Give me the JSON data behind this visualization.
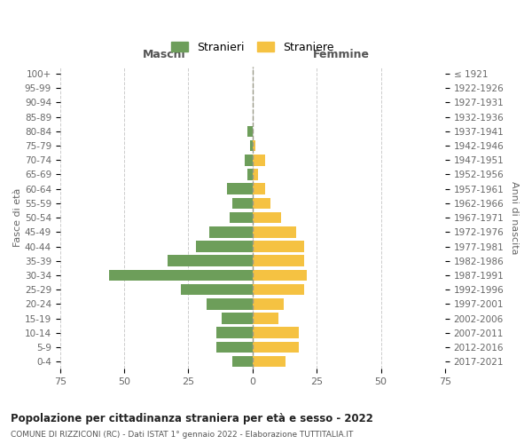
{
  "age_groups": [
    "0-4",
    "5-9",
    "10-14",
    "15-19",
    "20-24",
    "25-29",
    "30-34",
    "35-39",
    "40-44",
    "45-49",
    "50-54",
    "55-59",
    "60-64",
    "65-69",
    "70-74",
    "75-79",
    "80-84",
    "85-89",
    "90-94",
    "95-99",
    "100+"
  ],
  "birth_years": [
    "2017-2021",
    "2012-2016",
    "2007-2011",
    "2002-2006",
    "1997-2001",
    "1992-1996",
    "1987-1991",
    "1982-1986",
    "1977-1981",
    "1972-1976",
    "1967-1971",
    "1962-1966",
    "1957-1961",
    "1952-1956",
    "1947-1951",
    "1942-1946",
    "1937-1941",
    "1932-1936",
    "1927-1931",
    "1922-1926",
    "≤ 1921"
  ],
  "males": [
    8,
    14,
    14,
    12,
    18,
    28,
    56,
    33,
    22,
    17,
    9,
    8,
    10,
    2,
    3,
    1,
    2,
    0,
    0,
    0,
    0
  ],
  "females": [
    13,
    18,
    18,
    10,
    12,
    20,
    21,
    20,
    20,
    17,
    11,
    7,
    5,
    2,
    5,
    1,
    0,
    0,
    0,
    0,
    0
  ],
  "male_color": "#6d9e5a",
  "female_color": "#f5c242",
  "background_color": "#ffffff",
  "grid_color": "#cccccc",
  "title": "Popolazione per cittadinanza straniera per età e sesso - 2022",
  "subtitle": "COMUNE DI RIZZICONI (RC) - Dati ISTAT 1° gennaio 2022 - Elaborazione TUTTITALIA.IT",
  "left_label": "Maschi",
  "right_label": "Femmine",
  "ylabel_left": "Fasce di età",
  "ylabel_right": "Anni di nascita",
  "legend_male": "Stranieri",
  "legend_female": "Straniere",
  "xlim": 75
}
